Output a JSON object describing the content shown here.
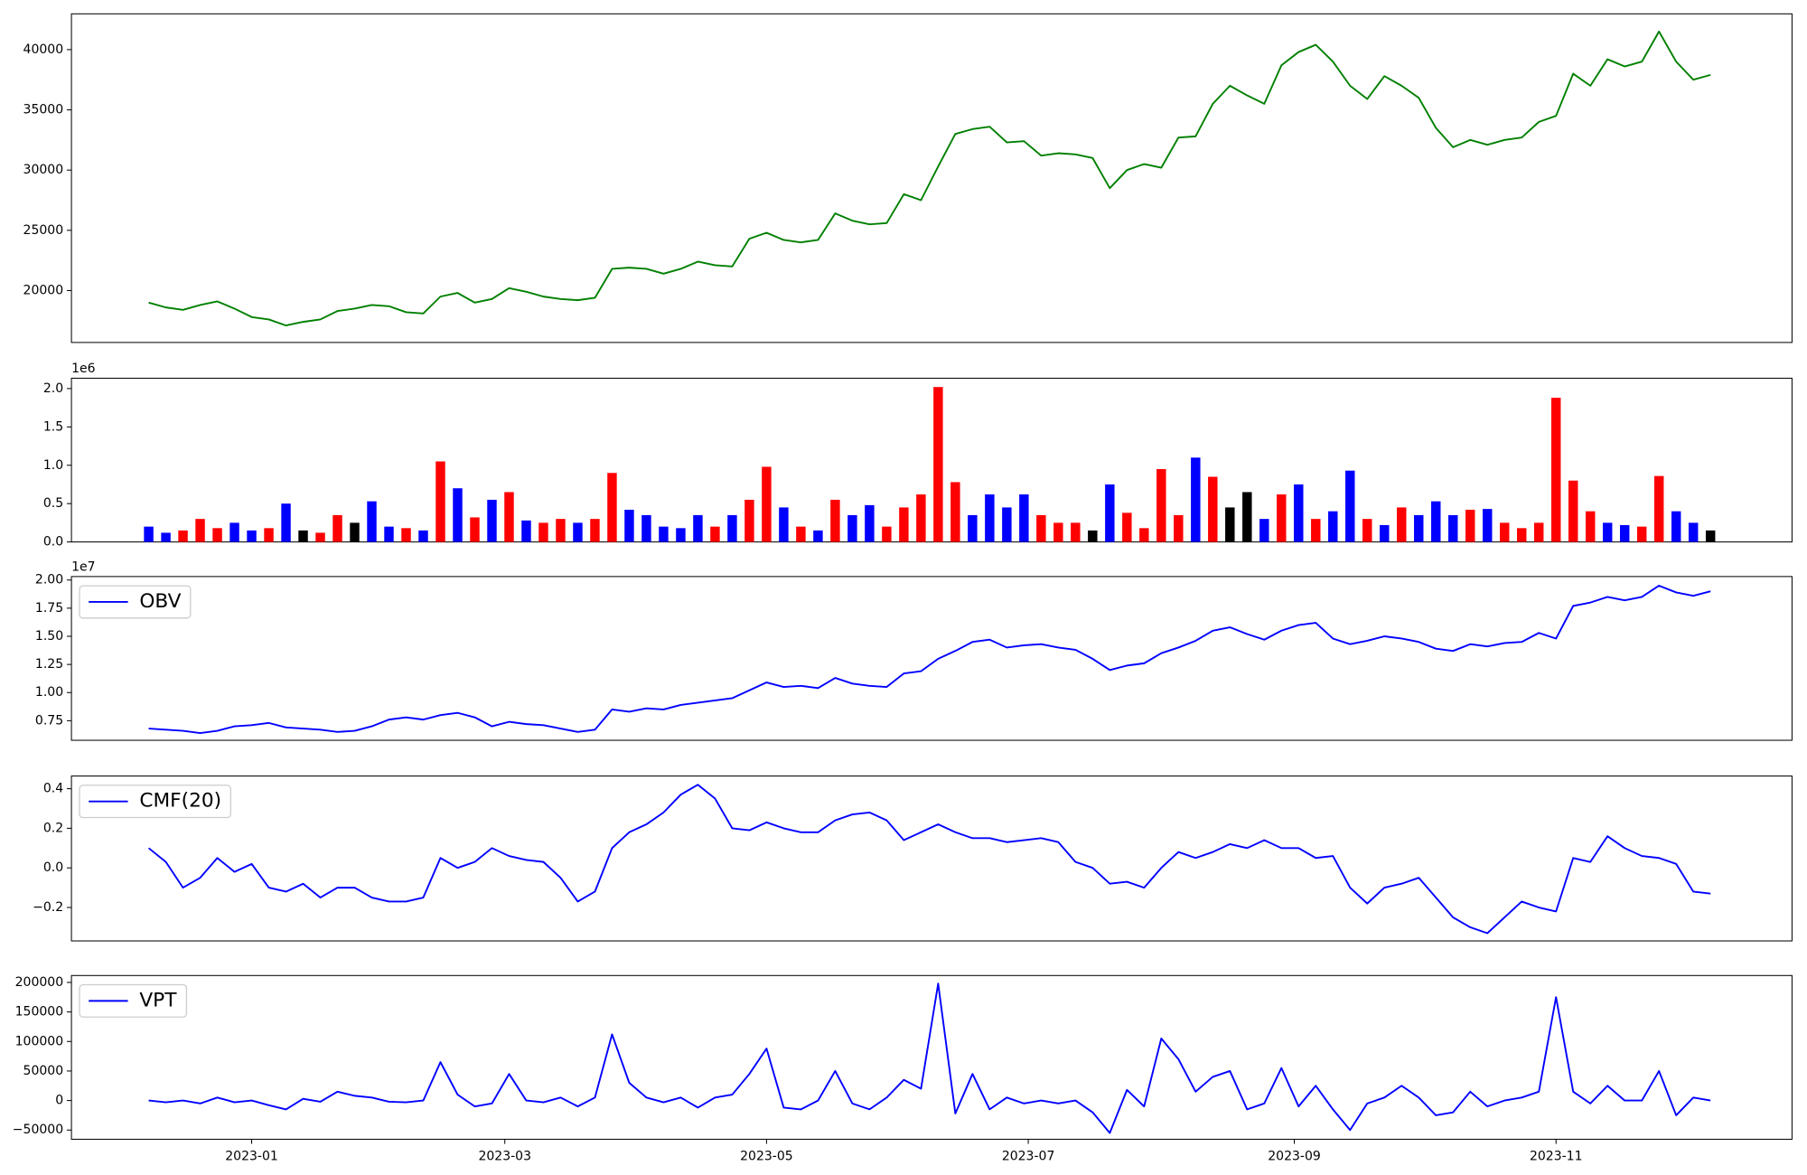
{
  "chart_data": [
    {
      "type": "line",
      "color": "green",
      "x": [
        -24,
        -20,
        -16,
        -12,
        -8,
        -4,
        0,
        4,
        8,
        12,
        16,
        20,
        24,
        28,
        32,
        36,
        40,
        44,
        48,
        52,
        56,
        60,
        64,
        68,
        72,
        76,
        80,
        84,
        88,
        92,
        96,
        100,
        104,
        108,
        112,
        116,
        120,
        124,
        128,
        132,
        136,
        140,
        144,
        148,
        152,
        156,
        160,
        164,
        168,
        172,
        176,
        180,
        184,
        188,
        192,
        196,
        200,
        204,
        208,
        212,
        216,
        220,
        224,
        228,
        232,
        236,
        240,
        244,
        248,
        252,
        256,
        260,
        264,
        268,
        272,
        276,
        280,
        284,
        288,
        292,
        296,
        300,
        304,
        308,
        312,
        316,
        320,
        324,
        328,
        332,
        336,
        340
      ],
      "values": [
        19000,
        18600,
        18400,
        18800,
        19100,
        18500,
        17800,
        17600,
        17100,
        17400,
        17600,
        18300,
        18500,
        18800,
        18700,
        18200,
        18100,
        19500,
        19800,
        19000,
        19300,
        20200,
        19900,
        19500,
        19300,
        19200,
        19400,
        21800,
        21900,
        21800,
        21400,
        21800,
        22400,
        22100,
        22000,
        24300,
        24800,
        24200,
        24000,
        24200,
        26400,
        25800,
        25500,
        25600,
        28000,
        27500,
        30300,
        33000,
        33400,
        33600,
        32300,
        32400,
        31200,
        31400,
        31300,
        31000,
        28500,
        30000,
        30500,
        30200,
        32700,
        32800,
        35500,
        37000,
        36200,
        35500,
        38700,
        39800,
        40400,
        39000,
        37000,
        35900,
        37800,
        37000,
        36000,
        33500,
        31900,
        32500,
        32100,
        32500,
        32700,
        34000,
        34500,
        38000,
        37000,
        39200,
        38600,
        39000,
        41500,
        39000,
        37500,
        37900
      ],
      "xlim": [
        -42,
        359
      ],
      "ylim": [
        15690,
        42970
      ],
      "yticks": [
        20000,
        25000,
        30000,
        35000,
        40000
      ]
    },
    {
      "type": "bar",
      "offset_text": "1e6",
      "x": [
        -24,
        -20,
        -16,
        -12,
        -8,
        -4,
        0,
        4,
        8,
        12,
        16,
        20,
        24,
        28,
        32,
        36,
        40,
        44,
        48,
        52,
        56,
        60,
        64,
        68,
        72,
        76,
        80,
        84,
        88,
        92,
        96,
        100,
        104,
        108,
        112,
        116,
        120,
        124,
        128,
        132,
        136,
        140,
        144,
        148,
        152,
        156,
        160,
        164,
        168,
        172,
        176,
        180,
        184,
        188,
        192,
        196,
        200,
        204,
        208,
        212,
        216,
        220,
        224,
        228,
        232,
        236,
        240,
        244,
        248,
        252,
        256,
        260,
        264,
        268,
        272,
        276,
        280,
        284,
        288,
        292,
        296,
        300,
        304,
        308,
        312,
        316,
        320,
        324,
        328,
        332,
        336,
        340
      ],
      "values": [
        0.2,
        0.12,
        0.15,
        0.3,
        0.18,
        0.25,
        0.15,
        0.18,
        0.5,
        0.15,
        0.12,
        0.35,
        0.25,
        0.53,
        0.2,
        0.18,
        0.15,
        1.05,
        0.7,
        0.32,
        0.55,
        0.65,
        0.28,
        0.25,
        0.3,
        0.25,
        0.3,
        0.9,
        0.42,
        0.35,
        0.2,
        0.18,
        0.35,
        0.2,
        0.35,
        0.55,
        0.98,
        0.45,
        0.2,
        0.15,
        0.55,
        0.35,
        0.48,
        0.2,
        0.45,
        0.62,
        2.02,
        0.78,
        0.35,
        0.62,
        0.45,
        0.62,
        0.35,
        0.25,
        0.25,
        0.15,
        0.75,
        0.38,
        0.18,
        0.95,
        0.35,
        1.1,
        0.85,
        0.45,
        0.65,
        0.3,
        0.62,
        0.75,
        0.3,
        0.4,
        0.93,
        0.3,
        0.22,
        0.45,
        0.35,
        0.53,
        0.35,
        0.42,
        0.43,
        0.25,
        0.18,
        0.25,
        1.88,
        0.8,
        0.4,
        0.25,
        0.22,
        0.2,
        0.86,
        0.4,
        0.25,
        0.15
      ],
      "colors": [
        "blue",
        "blue",
        "red",
        "red",
        "red",
        "blue",
        "blue",
        "red",
        "blue",
        "black",
        "red",
        "red",
        "black",
        "blue",
        "blue",
        "red",
        "blue",
        "red",
        "blue",
        "red",
        "blue",
        "red",
        "blue",
        "red",
        "red",
        "blue",
        "red",
        "red",
        "blue",
        "blue",
        "blue",
        "blue",
        "blue",
        "red",
        "blue",
        "red",
        "red",
        "blue",
        "red",
        "blue",
        "red",
        "blue",
        "blue",
        "red",
        "red",
        "red",
        "red",
        "red",
        "blue",
        "blue",
        "blue",
        "blue",
        "red",
        "red",
        "red",
        "black",
        "blue",
        "red",
        "red",
        "red",
        "red",
        "blue",
        "red",
        "black",
        "black",
        "blue",
        "red",
        "blue",
        "red",
        "blue",
        "blue",
        "red",
        "blue",
        "red",
        "blue",
        "blue",
        "blue",
        "red",
        "blue",
        "red",
        "red",
        "red",
        "red",
        "red",
        "red",
        "blue",
        "blue",
        "red",
        "red",
        "blue",
        "blue",
        "black"
      ],
      "xlim": [
        -42,
        359
      ],
      "ylim": [
        0,
        2.135
      ],
      "yticks": [
        {
          "value": 0,
          "label": "0.0"
        },
        0.5,
        {
          "value": 1,
          "label": "1.0"
        },
        1.5,
        {
          "value": 2,
          "label": "2.0"
        }
      ]
    },
    {
      "type": "line",
      "offset_text": "1e7",
      "legend": "upper left",
      "x": [
        -24,
        -20,
        -16,
        -12,
        -8,
        -4,
        0,
        4,
        8,
        12,
        16,
        20,
        24,
        28,
        32,
        36,
        40,
        44,
        48,
        52,
        56,
        60,
        64,
        68,
        72,
        76,
        80,
        84,
        88,
        92,
        96,
        100,
        104,
        108,
        112,
        116,
        120,
        124,
        128,
        132,
        136,
        140,
        144,
        148,
        152,
        156,
        160,
        164,
        168,
        172,
        176,
        180,
        184,
        188,
        192,
        196,
        200,
        204,
        208,
        212,
        216,
        220,
        224,
        228,
        232,
        236,
        240,
        244,
        248,
        252,
        256,
        260,
        264,
        268,
        272,
        276,
        280,
        284,
        288,
        292,
        296,
        300,
        304,
        308,
        312,
        316,
        320,
        324,
        328,
        332,
        336,
        340
      ],
      "series": [
        {
          "name": "OBV",
          "color": "blue",
          "values": [
            0.68,
            0.67,
            0.66,
            0.64,
            0.66,
            0.7,
            0.71,
            0.73,
            0.69,
            0.68,
            0.67,
            0.65,
            0.66,
            0.7,
            0.76,
            0.78,
            0.76,
            0.8,
            0.82,
            0.78,
            0.7,
            0.74,
            0.72,
            0.71,
            0.68,
            0.65,
            0.67,
            0.85,
            0.83,
            0.86,
            0.85,
            0.89,
            0.91,
            0.93,
            0.95,
            1.02,
            1.09,
            1.05,
            1.06,
            1.04,
            1.13,
            1.08,
            1.06,
            1.05,
            1.17,
            1.19,
            1.3,
            1.37,
            1.45,
            1.47,
            1.4,
            1.42,
            1.43,
            1.4,
            1.38,
            1.3,
            1.2,
            1.24,
            1.26,
            1.35,
            1.4,
            1.46,
            1.55,
            1.58,
            1.52,
            1.47,
            1.55,
            1.6,
            1.62,
            1.48,
            1.43,
            1.46,
            1.5,
            1.48,
            1.45,
            1.39,
            1.37,
            1.43,
            1.41,
            1.44,
            1.45,
            1.53,
            1.48,
            1.77,
            1.8,
            1.85,
            1.82,
            1.85,
            1.95,
            1.89,
            1.86,
            1.9
          ]
        }
      ],
      "xlim": [
        -42,
        359
      ],
      "ylim": [
        0.576,
        2.031
      ],
      "yticks": [
        0.75,
        {
          "value": 1,
          "label": "1.00"
        },
        1.25,
        {
          "value": 1.5,
          "label": "1.50"
        },
        1.75,
        {
          "value": 2,
          "label": "2.00"
        }
      ]
    },
    {
      "type": "line",
      "legend": "upper left",
      "x": [
        -24,
        -20,
        -16,
        -12,
        -8,
        -4,
        0,
        4,
        8,
        12,
        16,
        20,
        24,
        28,
        32,
        36,
        40,
        44,
        48,
        52,
        56,
        60,
        64,
        68,
        72,
        76,
        80,
        84,
        88,
        92,
        96,
        100,
        104,
        108,
        112,
        116,
        120,
        124,
        128,
        132,
        136,
        140,
        144,
        148,
        152,
        156,
        160,
        164,
        168,
        172,
        176,
        180,
        184,
        188,
        192,
        196,
        200,
        204,
        208,
        212,
        216,
        220,
        224,
        228,
        232,
        236,
        240,
        244,
        248,
        252,
        256,
        260,
        264,
        268,
        272,
        276,
        280,
        284,
        288,
        292,
        296,
        300,
        304,
        308,
        312,
        316,
        320,
        324,
        328,
        332,
        336,
        340
      ],
      "series": [
        {
          "name": "CMF(20)",
          "color": "blue",
          "values": [
            0.1,
            0.03,
            -0.1,
            -0.05,
            0.05,
            -0.02,
            0.02,
            -0.1,
            -0.12,
            -0.08,
            -0.15,
            -0.1,
            -0.1,
            -0.15,
            -0.17,
            -0.17,
            -0.15,
            0.05,
            0,
            0.03,
            0.1,
            0.06,
            0.04,
            0.03,
            -0.05,
            -0.17,
            -0.12,
            0.1,
            0.18,
            0.22,
            0.28,
            0.37,
            0.42,
            0.35,
            0.2,
            0.19,
            0.23,
            0.2,
            0.18,
            0.18,
            0.24,
            0.27,
            0.28,
            0.24,
            0.14,
            0.18,
            0.22,
            0.18,
            0.15,
            0.15,
            0.13,
            0.14,
            0.15,
            0.13,
            0.03,
            0,
            -0.08,
            -0.07,
            -0.1,
            0,
            0.08,
            0.05,
            0.08,
            0.12,
            0.1,
            0.14,
            0.1,
            0.1,
            0.05,
            0.06,
            -0.1,
            -0.18,
            -0.1,
            -0.08,
            -0.05,
            -0.15,
            -0.25,
            -0.3,
            -0.33,
            -0.25,
            -0.17,
            -0.2,
            -0.22,
            0.05,
            0.03,
            0.16,
            0.1,
            0.06,
            0.05,
            0.02,
            -0.12,
            -0.13
          ]
        }
      ],
      "xlim": [
        -42,
        359
      ],
      "ylim": [
        -0.369,
        0.464
      ],
      "yticks": [
        {
          "value": -0.2,
          "label": "−0.2"
        },
        {
          "value": 0,
          "label": "0.0"
        },
        0.2,
        0.4
      ]
    },
    {
      "type": "line",
      "legend": "upper left",
      "x": [
        -24,
        -20,
        -16,
        -12,
        -8,
        -4,
        0,
        4,
        8,
        12,
        16,
        20,
        24,
        28,
        32,
        36,
        40,
        44,
        48,
        52,
        56,
        60,
        64,
        68,
        72,
        76,
        80,
        84,
        88,
        92,
        96,
        100,
        104,
        108,
        112,
        116,
        120,
        124,
        128,
        132,
        136,
        140,
        144,
        148,
        152,
        156,
        160,
        164,
        168,
        172,
        176,
        180,
        184,
        188,
        192,
        196,
        200,
        204,
        208,
        212,
        216,
        220,
        224,
        228,
        232,
        236,
        240,
        244,
        248,
        252,
        256,
        260,
        264,
        268,
        272,
        276,
        280,
        284,
        288,
        292,
        296,
        300,
        304,
        308,
        312,
        316,
        320,
        324,
        328,
        332,
        336,
        340
      ],
      "series": [
        {
          "name": "VPT",
          "color": "blue",
          "values": [
            0,
            -3000,
            0,
            -5000,
            5000,
            -3000,
            0,
            -8000,
            -15000,
            3000,
            -2000,
            15000,
            8000,
            5000,
            -2000,
            -3000,
            0,
            65000,
            10000,
            -10000,
            -5000,
            45000,
            0,
            -3000,
            5000,
            -10000,
            5000,
            112000,
            30000,
            5000,
            -3000,
            5000,
            -12000,
            5000,
            10000,
            45000,
            88000,
            -12000,
            -15000,
            0,
            50000,
            -5000,
            -15000,
            5000,
            35000,
            20000,
            198000,
            -22000,
            45000,
            -15000,
            5000,
            -5000,
            0,
            -5000,
            0,
            -20000,
            -55000,
            18000,
            -10000,
            105000,
            70000,
            15000,
            40000,
            50000,
            -15000,
            -5000,
            55000,
            -10000,
            25000,
            -15000,
            -50000,
            -5000,
            5000,
            25000,
            5000,
            -25000,
            -20000,
            15000,
            -10000,
            0,
            5000,
            15000,
            175000,
            15000,
            -5000,
            25000,
            0,
            0,
            50000,
            -25000,
            5000,
            0
          ]
        }
      ],
      "xlim": [
        -42,
        359
      ],
      "ylim": [
        -65600,
        211700
      ],
      "yticks": [
        {
          "value": -50000,
          "label": "−50000"
        },
        0,
        50000,
        100000,
        150000,
        200000
      ],
      "xticks": [
        {
          "value": 0,
          "label": "2023-01"
        },
        {
          "value": 59,
          "label": "2023-03"
        },
        {
          "value": 120,
          "label": "2023-05"
        },
        {
          "value": 181,
          "label": "2023-07"
        },
        {
          "value": 243,
          "label": "2023-09"
        },
        {
          "value": 304,
          "label": "2023-11"
        }
      ]
    }
  ]
}
